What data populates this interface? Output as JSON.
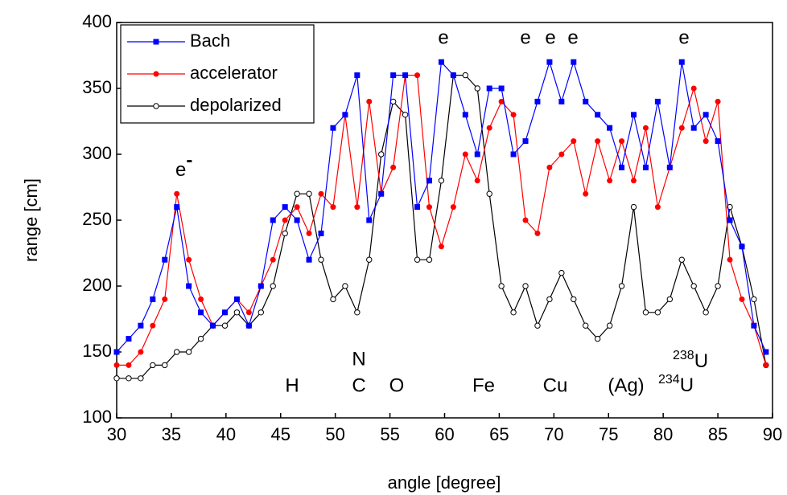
{
  "chart_data": {
    "type": "line",
    "xlabel": "angle [degree]",
    "ylabel": "range [cm]",
    "x": [
      30.0,
      31.1,
      32.2,
      33.3,
      34.4,
      35.5,
      36.6,
      37.7,
      38.8,
      39.9,
      41.0,
      42.1,
      43.2,
      44.3,
      45.4,
      46.5,
      47.6,
      48.7,
      49.8,
      50.9,
      52.0,
      53.1,
      54.2,
      55.3,
      56.4,
      57.5,
      58.6,
      59.7,
      60.8,
      61.9,
      63.0,
      64.1,
      65.2,
      66.3,
      67.4,
      68.5,
      69.6,
      70.7,
      71.8,
      72.9,
      74.0,
      75.1,
      76.2,
      77.3,
      78.4,
      79.5,
      80.6,
      81.7,
      82.8,
      83.9,
      85.0,
      86.1,
      87.2,
      88.3,
      89.4
    ],
    "series": [
      {
        "name": "Bach",
        "color": "#0000ff",
        "marker": "square",
        "values": [
          150,
          160,
          170,
          190,
          220,
          260,
          200,
          180,
          170,
          180,
          190,
          170,
          200,
          250,
          260,
          250,
          220,
          240,
          320,
          330,
          360,
          250,
          270,
          360,
          360,
          260,
          280,
          370,
          360,
          330,
          300,
          350,
          350,
          300,
          310,
          340,
          370,
          340,
          370,
          340,
          330,
          320,
          290,
          330,
          290,
          340,
          290,
          370,
          320,
          330,
          310,
          250,
          230,
          170,
          150
        ]
      },
      {
        "name": "accelerator",
        "color": "#ff0000",
        "marker": "circle",
        "values": [
          140,
          140,
          150,
          170,
          190,
          270,
          220,
          190,
          170,
          180,
          190,
          180,
          200,
          220,
          250,
          260,
          240,
          270,
          260,
          330,
          260,
          340,
          270,
          290,
          360,
          360,
          260,
          230,
          260,
          300,
          280,
          320,
          340,
          330,
          250,
          240,
          290,
          300,
          310,
          270,
          310,
          280,
          310,
          280,
          320,
          260,
          290,
          320,
          350,
          310,
          340,
          220,
          190,
          170,
          140
        ]
      },
      {
        "name": "depolarized",
        "color": "#000000",
        "marker": "open-circle",
        "values": [
          130,
          130,
          130,
          140,
          140,
          150,
          150,
          160,
          170,
          170,
          180,
          170,
          180,
          200,
          240,
          270,
          270,
          220,
          190,
          200,
          180,
          220,
          300,
          340,
          330,
          220,
          220,
          280,
          360,
          360,
          350,
          270,
          200,
          180,
          200,
          170,
          190,
          210,
          190,
          170,
          160,
          170,
          200,
          260,
          180,
          180,
          190,
          220,
          200,
          180,
          200,
          260,
          230,
          190,
          140
        ]
      }
    ],
    "xlim": [
      30,
      90
    ],
    "xticks": [
      30,
      35,
      40,
      45,
      50,
      55,
      60,
      65,
      70,
      75,
      80,
      85,
      90
    ],
    "ylim": [
      100,
      400
    ],
    "yticks": [
      100,
      150,
      200,
      250,
      300,
      350,
      400
    ],
    "legend": "upper left",
    "annotations": [
      {
        "text": "e",
        "sup": "-"
      },
      {
        "text": "e"
      },
      {
        "text": "e"
      },
      {
        "text": "e"
      },
      {
        "text": "e"
      },
      {
        "text": "e"
      },
      {
        "text": "H"
      },
      {
        "text": "N"
      },
      {
        "text": "C"
      },
      {
        "text": "O"
      },
      {
        "text": "Fe"
      },
      {
        "text": "Cu"
      },
      {
        "text": "(Ag)"
      },
      {
        "sup": "238",
        "text": "U"
      },
      {
        "sup": "234",
        "text": "U"
      }
    ]
  }
}
